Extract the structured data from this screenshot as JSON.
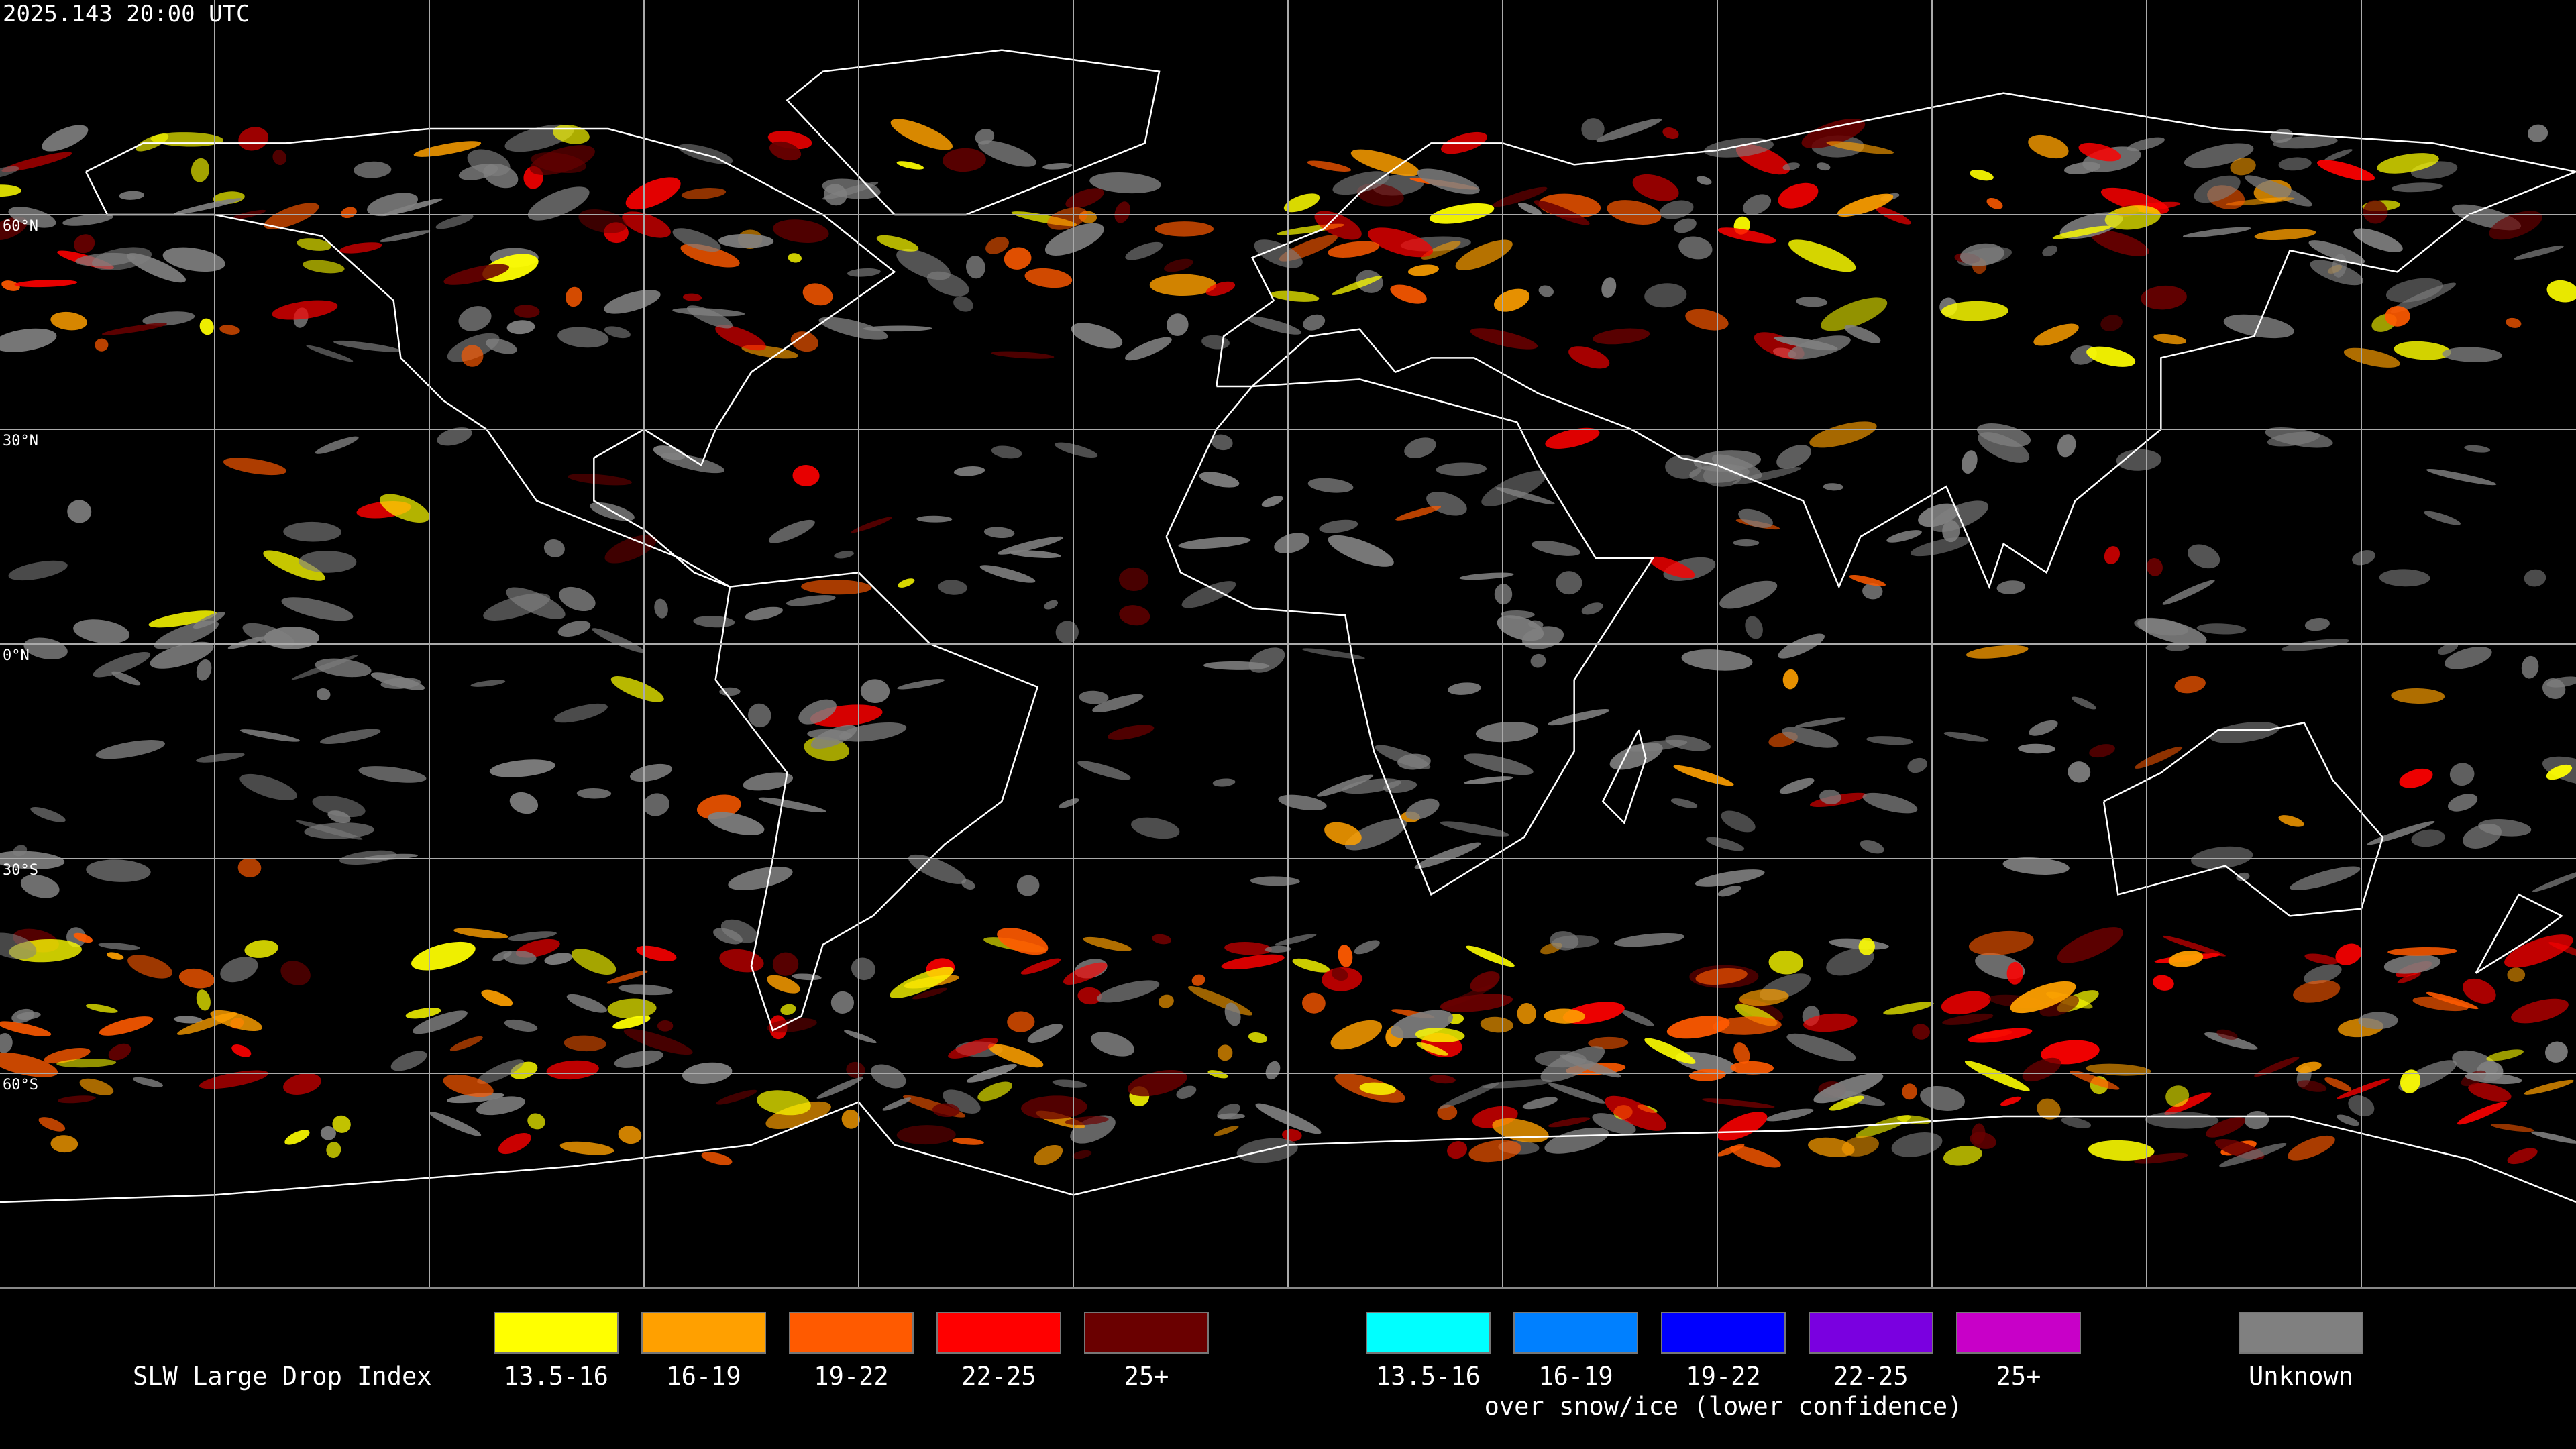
{
  "header": {
    "timestamp": "2025.143 20:00 UTC"
  },
  "latitude_labels": [
    "60°N",
    "30°N",
    "0°N",
    "30°S",
    "60°S"
  ],
  "legend": {
    "title": "SLW Large Drop Index",
    "groups": [
      {
        "items": [
          {
            "label": "13.5-16",
            "color": "#ffff00"
          },
          {
            "label": "16-19",
            "color": "#ffa000"
          },
          {
            "label": "19-22",
            "color": "#ff5a00"
          },
          {
            "label": "22-25",
            "color": "#ff0000"
          },
          {
            "label": "25+",
            "color": "#6a0000"
          }
        ]
      },
      {
        "caption": "over snow/ice (lower confidence)",
        "items": [
          {
            "label": "13.5-16",
            "color": "#00ffff"
          },
          {
            "label": "16-19",
            "color": "#0080ff"
          },
          {
            "label": "19-22",
            "color": "#0000ff"
          },
          {
            "label": "22-25",
            "color": "#7a00e0"
          },
          {
            "label": "25+",
            "color": "#c800c8"
          }
        ]
      }
    ],
    "unknown": {
      "label": "Unknown",
      "color": "#808080"
    }
  }
}
